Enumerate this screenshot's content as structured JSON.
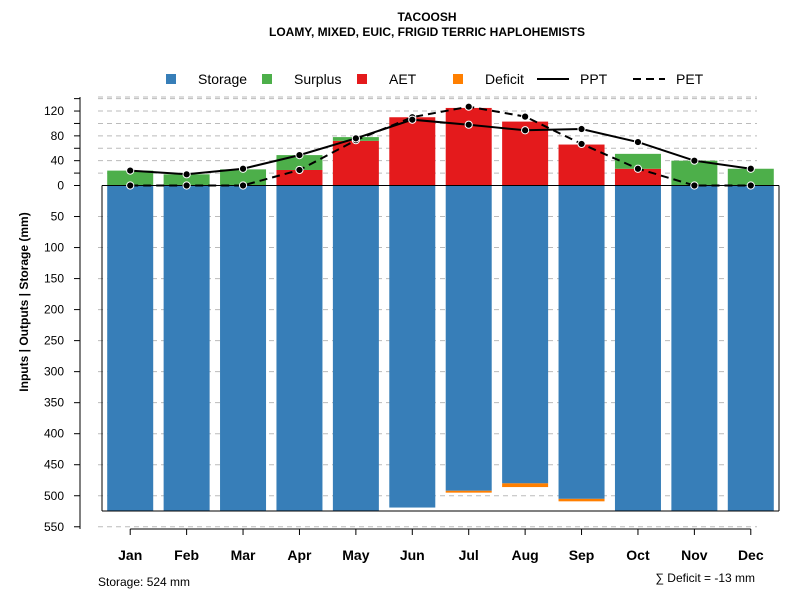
{
  "chart_data": {
    "type": "bar",
    "title": "TACOOSH",
    "subtitle": "LOAMY, MIXED, EUIC, FRIGID TERRIC HAPLOHEMISTS",
    "ylabel": "Inputs | Outputs | Storage    (mm)",
    "xlabel": "",
    "categories": [
      "Jan",
      "Feb",
      "Mar",
      "Apr",
      "May",
      "Jun",
      "Jul",
      "Aug",
      "Sep",
      "Oct",
      "Nov",
      "Dec"
    ],
    "legend": {
      "storage": "Storage",
      "surplus": "Surplus",
      "aet": "AET",
      "deficit": "Deficit",
      "ppt": "PPT",
      "pet": "PET"
    },
    "colors": {
      "storage": "#377EB8",
      "surplus": "#4DAF4A",
      "aet": "#E41A1C",
      "deficit": "#FF7F00",
      "line": "#000000",
      "grid": "#bbbbbb"
    },
    "storage_capacity": 524,
    "storage": [
      524,
      524,
      524,
      524,
      524,
      519,
      492,
      480,
      505,
      524,
      524,
      524
    ],
    "deficit": [
      0,
      0,
      0,
      0,
      0,
      0,
      3,
      6,
      4,
      0,
      0,
      0
    ],
    "aet": [
      0,
      0,
      0,
      25,
      72,
      110,
      125,
      103,
      66,
      27,
      0,
      0
    ],
    "surplus": [
      24,
      18,
      26,
      24,
      6,
      0,
      0,
      0,
      0,
      24,
      40,
      27
    ],
    "ppt": [
      24,
      18,
      27,
      49,
      76,
      106,
      98,
      89,
      91,
      70,
      40,
      27
    ],
    "pet": [
      0,
      0,
      0,
      25,
      73,
      110,
      127,
      111,
      67,
      27,
      0,
      0
    ],
    "y_top_ticks": [
      0,
      40,
      80,
      120
    ],
    "y_bottom_ticks": [
      50,
      100,
      150,
      200,
      250,
      300,
      350,
      400,
      450,
      500,
      550
    ],
    "ylim": [
      -550,
      140
    ],
    "grid": true,
    "legend_position": "top",
    "footer_left": "Storage: 524 mm",
    "footer_right": "∑ Deficit = -13 mm"
  }
}
